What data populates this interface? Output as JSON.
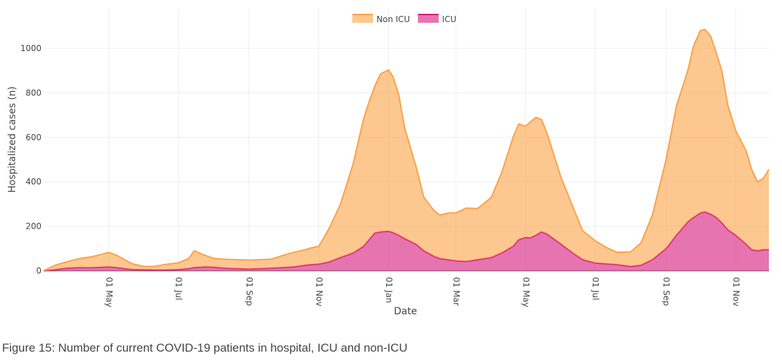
{
  "caption": "Figure 15: Number of current COVID-19 patients in hospital, ICU and non-ICU",
  "chart_data": {
    "type": "area",
    "stacked": true,
    "xlabel": "Date",
    "ylabel": "Hospitalized cases (n)",
    "ylim": [
      0,
      1180
    ],
    "yticks": [
      0,
      200,
      400,
      600,
      800,
      1000
    ],
    "grid": true,
    "legend_position": "top-center",
    "x_range": [
      "2020-03-05",
      "2021-11-30"
    ],
    "xticks": [
      {
        "date": "2020-05-01",
        "label": "01 May"
      },
      {
        "date": "2020-07-01",
        "label": "01 Jul"
      },
      {
        "date": "2020-09-01",
        "label": "01 Sep"
      },
      {
        "date": "2020-11-01",
        "label": "01 Nov"
      },
      {
        "date": "2021-01-01",
        "label": "01 Jan"
      },
      {
        "date": "2021-03-01",
        "label": "01 Mar"
      },
      {
        "date": "2021-05-01",
        "label": "01 May"
      },
      {
        "date": "2021-07-01",
        "label": "01 Jul"
      },
      {
        "date": "2021-09-01",
        "label": "01 Sep"
      },
      {
        "date": "2021-11-01",
        "label": "01 Nov"
      }
    ],
    "x": [
      "2020-03-05",
      "2020-03-15",
      "2020-03-25",
      "2020-04-05",
      "2020-04-15",
      "2020-04-25",
      "2020-05-01",
      "2020-05-08",
      "2020-05-15",
      "2020-05-22",
      "2020-06-01",
      "2020-06-10",
      "2020-06-20",
      "2020-07-01",
      "2020-07-10",
      "2020-07-15",
      "2020-07-25",
      "2020-08-01",
      "2020-08-10",
      "2020-08-20",
      "2020-09-01",
      "2020-09-10",
      "2020-09-20",
      "2020-10-01",
      "2020-10-10",
      "2020-10-20",
      "2020-10-25",
      "2020-11-01",
      "2020-11-10",
      "2020-11-20",
      "2020-12-01",
      "2020-12-10",
      "2020-12-15",
      "2020-12-20",
      "2020-12-25",
      "2021-01-01",
      "2021-01-05",
      "2021-01-10",
      "2021-01-15",
      "2021-01-25",
      "2021-02-01",
      "2021-02-10",
      "2021-02-15",
      "2021-02-22",
      "2021-03-01",
      "2021-03-10",
      "2021-03-20",
      "2021-04-01",
      "2021-04-10",
      "2021-04-20",
      "2021-04-25",
      "2021-05-01",
      "2021-05-05",
      "2021-05-10",
      "2021-05-15",
      "2021-05-20",
      "2021-06-01",
      "2021-06-10",
      "2021-06-20",
      "2021-07-01",
      "2021-07-10",
      "2021-07-20",
      "2021-08-01",
      "2021-08-10",
      "2021-08-20",
      "2021-09-01",
      "2021-09-10",
      "2021-09-20",
      "2021-09-25",
      "2021-10-01",
      "2021-10-05",
      "2021-10-10",
      "2021-10-15",
      "2021-10-20",
      "2021-10-25",
      "2021-11-01",
      "2021-11-10",
      "2021-11-15",
      "2021-11-20",
      "2021-11-25",
      "2021-11-30"
    ],
    "series": [
      {
        "name": "ICU",
        "color": "#d6187d",
        "values": [
          0,
          5,
          12,
          15,
          14,
          16,
          18,
          15,
          10,
          6,
          5,
          4,
          4,
          6,
          10,
          15,
          18,
          16,
          12,
          10,
          8,
          10,
          12,
          15,
          18,
          25,
          28,
          30,
          40,
          60,
          80,
          110,
          140,
          170,
          175,
          178,
          172,
          160,
          145,
          120,
          90,
          65,
          55,
          50,
          45,
          42,
          50,
          60,
          80,
          110,
          140,
          150,
          148,
          160,
          175,
          165,
          120,
          85,
          50,
          35,
          32,
          28,
          20,
          25,
          50,
          100,
          160,
          220,
          240,
          260,
          265,
          255,
          240,
          215,
          185,
          160,
          120,
          95,
          90,
          95,
          95
        ]
      },
      {
        "name": "Non ICU",
        "color": "#fca146",
        "values": [
          0,
          20,
          28,
          40,
          48,
          58,
          65,
          55,
          40,
          25,
          15,
          16,
          25,
          30,
          45,
          75,
          50,
          40,
          40,
          40,
          40,
          40,
          40,
          55,
          65,
          70,
          75,
          80,
          150,
          240,
          400,
          570,
          620,
          660,
          710,
          725,
          700,
          630,
          500,
          350,
          240,
          205,
          195,
          210,
          215,
          240,
          230,
          270,
          360,
          490,
          520,
          500,
          520,
          530,
          505,
          450,
          300,
          220,
          130,
          100,
          75,
          55,
          65,
          100,
          200,
          400,
          580,
          680,
          770,
          820,
          820,
          800,
          740,
          680,
          560,
          470,
          420,
          360,
          310,
          320,
          360
        ]
      }
    ]
  }
}
